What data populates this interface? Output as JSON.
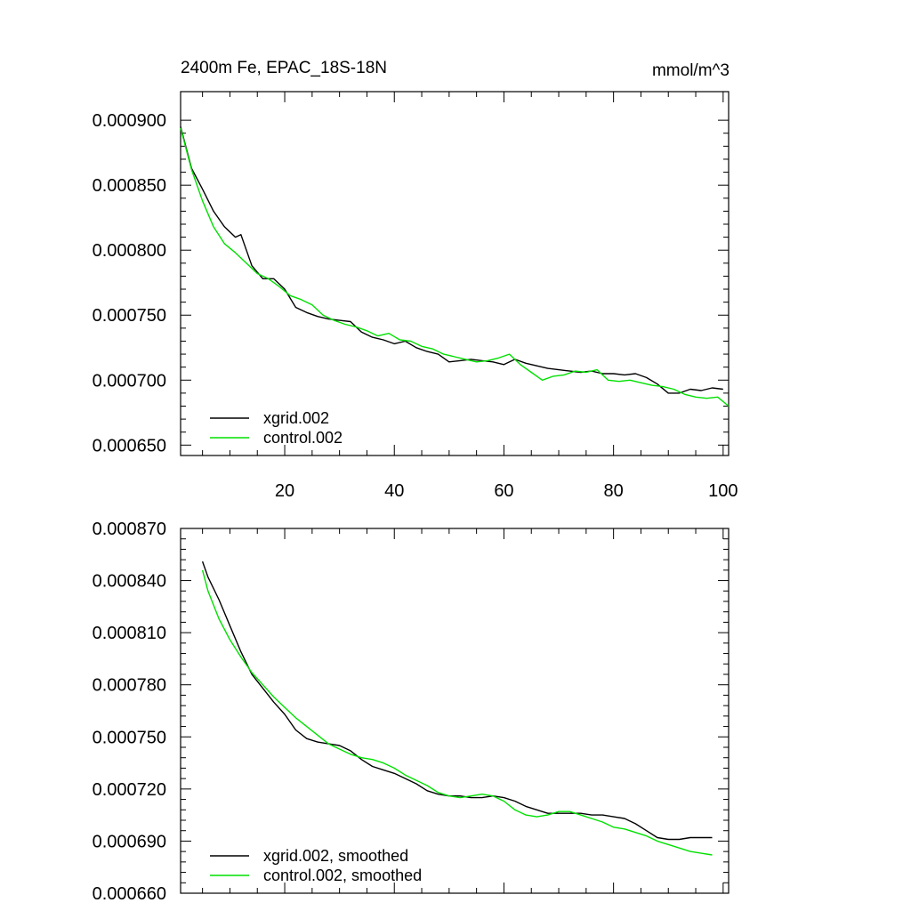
{
  "title": "2400m Fe, EPAC_18S-18N",
  "units": "mmol/m^3",
  "colors": {
    "xgrid": "#000000",
    "control": "#00e000"
  },
  "chart_data": [
    {
      "type": "line",
      "name": "raw",
      "title": "2400m Fe, EPAC_18S-18N",
      "units": "mmol/m^3",
      "xlim": [
        1,
        101
      ],
      "ylim": [
        0.000642,
        0.000922
      ],
      "xticks": [
        20,
        40,
        60,
        80,
        100
      ],
      "xtick_labels": [
        "20",
        "40",
        "60",
        "80",
        "100"
      ],
      "yticks": [
        0.00065,
        0.0007,
        0.00075,
        0.0008,
        0.00085,
        0.0009
      ],
      "ytick_labels": [
        "0.000650",
        "0.000700",
        "0.000750",
        "0.000800",
        "0.000850",
        "0.000900"
      ],
      "legend_position": "bottom-left",
      "series": [
        {
          "name": "xgrid.002",
          "color": "#000000",
          "x": [
            1,
            3,
            5,
            7,
            9,
            11,
            12,
            14,
            16,
            18,
            20,
            22,
            24,
            26,
            28,
            30,
            32,
            34,
            36,
            38,
            40,
            42,
            44,
            46,
            48,
            50,
            52,
            54,
            56,
            58,
            60,
            62,
            64,
            66,
            68,
            70,
            72,
            74,
            76,
            78,
            80,
            82,
            84,
            86,
            88,
            90,
            92,
            94,
            96,
            98,
            100
          ],
          "values": [
            0.000895,
            0.000863,
            0.000847,
            0.00083,
            0.000818,
            0.00081,
            0.000812,
            0.000788,
            0.000778,
            0.000778,
            0.00077,
            0.000756,
            0.000752,
            0.000749,
            0.000747,
            0.000746,
            0.000745,
            0.000737,
            0.000733,
            0.000731,
            0.000728,
            0.00073,
            0.000725,
            0.000722,
            0.00072,
            0.000714,
            0.000715,
            0.000716,
            0.000715,
            0.000714,
            0.000712,
            0.000716,
            0.000713,
            0.000711,
            0.000709,
            0.000708,
            0.000707,
            0.000706,
            0.000707,
            0.000705,
            0.000705,
            0.000704,
            0.000705,
            0.000702,
            0.000697,
            0.00069,
            0.00069,
            0.000693,
            0.000692,
            0.000694,
            0.000693
          ]
        },
        {
          "name": "control.002",
          "color": "#00e000",
          "x": [
            1,
            3,
            5,
            7,
            9,
            11,
            13,
            15,
            17,
            19,
            21,
            23,
            25,
            27,
            29,
            31,
            33,
            35,
            37,
            39,
            41,
            43,
            45,
            47,
            49,
            51,
            53,
            55,
            57,
            59,
            61,
            63,
            65,
            67,
            69,
            71,
            73,
            75,
            77,
            79,
            81,
            83,
            85,
            87,
            89,
            91,
            93,
            95,
            97,
            99,
            101
          ],
          "values": [
            0.000894,
            0.000862,
            0.000838,
            0.000818,
            0.000805,
            0.000798,
            0.00079,
            0.000782,
            0.000778,
            0.000772,
            0.000765,
            0.000762,
            0.000758,
            0.00075,
            0.000746,
            0.000743,
            0.000741,
            0.000738,
            0.000734,
            0.000736,
            0.000731,
            0.00073,
            0.000726,
            0.000724,
            0.00072,
            0.000718,
            0.000716,
            0.000714,
            0.000715,
            0.000717,
            0.00072,
            0.000712,
            0.000706,
            0.0007,
            0.000703,
            0.000704,
            0.000707,
            0.000706,
            0.000708,
            0.0007,
            0.000699,
            0.0007,
            0.000698,
            0.000696,
            0.000695,
            0.000693,
            0.000689,
            0.000687,
            0.000686,
            0.000687,
            0.00068
          ]
        }
      ]
    },
    {
      "type": "line",
      "name": "smoothed",
      "xlim": [
        1,
        101
      ],
      "ylim": [
        0.00066,
        0.00087
      ],
      "xticks": [
        20,
        40,
        60,
        80,
        100
      ],
      "yticks": [
        0.00066,
        0.00069,
        0.00072,
        0.00075,
        0.00078,
        0.00081,
        0.00084,
        0.00087
      ],
      "ytick_labels": [
        "0.000660",
        "0.000690",
        "0.000720",
        "0.000750",
        "0.000780",
        "0.000810",
        "0.000840",
        "0.000870"
      ],
      "legend_position": "bottom-left",
      "series": [
        {
          "name": "xgrid.002, smoothed",
          "color": "#000000",
          "x": [
            5,
            6,
            8,
            10,
            12,
            14,
            16,
            18,
            20,
            22,
            24,
            26,
            28,
            30,
            32,
            34,
            36,
            38,
            40,
            42,
            44,
            46,
            48,
            50,
            52,
            54,
            56,
            58,
            60,
            62,
            64,
            66,
            68,
            70,
            72,
            74,
            76,
            78,
            80,
            82,
            84,
            86,
            88,
            90,
            92,
            94,
            96,
            98
          ],
          "values": [
            0.000851,
            0.000842,
            0.000829,
            0.000814,
            0.000799,
            0.000786,
            0.000778,
            0.00077,
            0.000763,
            0.000754,
            0.000749,
            0.000747,
            0.000746,
            0.000745,
            0.000742,
            0.000737,
            0.000733,
            0.000731,
            0.000729,
            0.000726,
            0.000723,
            0.000719,
            0.000717,
            0.000716,
            0.000716,
            0.000715,
            0.000715,
            0.000716,
            0.000715,
            0.000713,
            0.00071,
            0.000708,
            0.000706,
            0.000706,
            0.000706,
            0.000706,
            0.000705,
            0.000705,
            0.000704,
            0.000703,
            0.0007,
            0.000696,
            0.000692,
            0.000691,
            0.000691,
            0.000692,
            0.000692,
            0.000692
          ]
        },
        {
          "name": "control.002, smoothed",
          "color": "#00e000",
          "x": [
            5,
            6,
            8,
            10,
            12,
            14,
            16,
            18,
            20,
            22,
            24,
            26,
            28,
            30,
            32,
            34,
            36,
            38,
            40,
            42,
            44,
            46,
            48,
            50,
            52,
            54,
            56,
            58,
            60,
            62,
            64,
            66,
            68,
            70,
            72,
            74,
            76,
            78,
            80,
            82,
            84,
            86,
            88,
            90,
            92,
            94,
            96,
            98
          ],
          "values": [
            0.000846,
            0.000834,
            0.000818,
            0.000806,
            0.000796,
            0.000787,
            0.00078,
            0.000773,
            0.000767,
            0.000761,
            0.000756,
            0.000751,
            0.000746,
            0.000743,
            0.00074,
            0.000738,
            0.000737,
            0.000735,
            0.000732,
            0.000728,
            0.000725,
            0.000722,
            0.000718,
            0.000716,
            0.000715,
            0.000716,
            0.000717,
            0.000716,
            0.000713,
            0.000708,
            0.000705,
            0.000704,
            0.000705,
            0.000707,
            0.000707,
            0.000705,
            0.000703,
            0.000701,
            0.000698,
            0.000697,
            0.000695,
            0.000693,
            0.00069,
            0.000688,
            0.000686,
            0.000684,
            0.000683,
            0.000682
          ]
        }
      ]
    }
  ]
}
